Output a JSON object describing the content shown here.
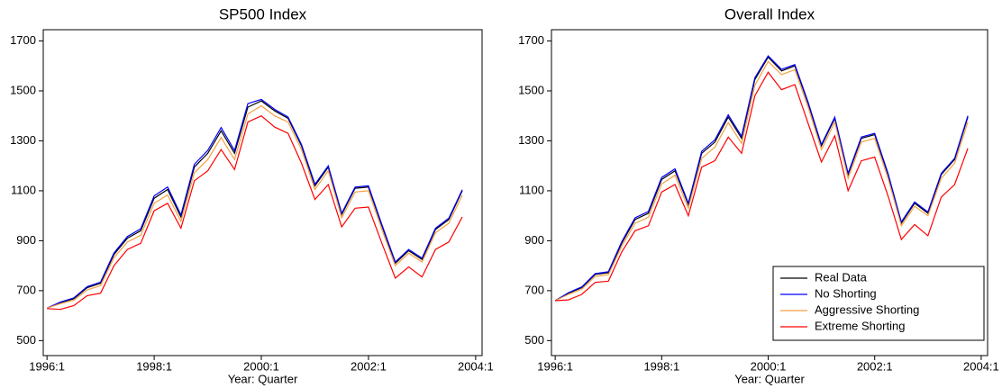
{
  "chart_data": [
    {
      "type": "line",
      "title": "SP500 Index",
      "x_label": "Year: Quarter",
      "x": [
        1996,
        1996.25,
        1996.5,
        1996.75,
        1997,
        1997.25,
        1997.5,
        1997.75,
        1998,
        1998.25,
        1998.5,
        1998.75,
        1999,
        1999.25,
        1999.5,
        1999.75,
        2000,
        2000.25,
        2000.5,
        2000.75,
        2001,
        2001.25,
        2001.5,
        2001.75,
        2002,
        2002.25,
        2002.5,
        2002.75,
        2003,
        2003.25,
        2003.5,
        2003.75
      ],
      "xlim": [
        1995.93,
        2004.12
      ],
      "xticks": [
        {
          "value": 1996,
          "label": "1996:1"
        },
        {
          "value": 1998,
          "label": "1998:1"
        },
        {
          "value": 2000,
          "label": "2000:1"
        },
        {
          "value": 2002,
          "label": "2002:1"
        },
        {
          "value": 2004,
          "label": "2004:1"
        }
      ],
      "ylim": [
        440,
        1745
      ],
      "yticks": [
        500,
        700,
        900,
        1100,
        1300,
        1500,
        1700
      ],
      "series": [
        {
          "color": "#000000",
          "values": [
            630,
            652,
            668,
            712,
            730,
            845,
            910,
            940,
            1070,
            1105,
            995,
            1195,
            1250,
            1340,
            1250,
            1435,
            1460,
            1420,
            1390,
            1280,
            1120,
            1195,
            1005,
            1110,
            1115,
            960,
            810,
            860,
            825,
            945,
            985,
            1100
          ]
        },
        {
          "color": "#0000ff",
          "values": [
            630,
            654,
            671,
            716,
            734,
            851,
            917,
            948,
            1080,
            1115,
            1003,
            1206,
            1262,
            1353,
            1261,
            1449,
            1466,
            1426,
            1395,
            1285,
            1126,
            1200,
            1010,
            1115,
            1120,
            965,
            815,
            865,
            830,
            950,
            990,
            1104
          ]
        },
        {
          "color": "#f5a040",
          "values": [
            630,
            648,
            662,
            703,
            720,
            832,
            895,
            922,
            1050,
            1083,
            978,
            1172,
            1225,
            1313,
            1225,
            1408,
            1440,
            1400,
            1375,
            1265,
            1105,
            1180,
            992,
            1095,
            1100,
            945,
            800,
            850,
            815,
            932,
            970,
            1082
          ]
        },
        {
          "color": "#ff0000",
          "values": [
            628,
            625,
            640,
            680,
            690,
            800,
            865,
            890,
            1020,
            1050,
            950,
            1140,
            1180,
            1265,
            1185,
            1375,
            1400,
            1355,
            1330,
            1210,
            1065,
            1125,
            955,
            1030,
            1035,
            890,
            750,
            795,
            755,
            865,
            895,
            995
          ]
        }
      ]
    },
    {
      "type": "line",
      "title": "Overall Index",
      "x_label": "Year: Quarter",
      "x": [
        1996,
        1996.25,
        1996.5,
        1996.75,
        1997,
        1997.25,
        1997.5,
        1997.75,
        1998,
        1998.25,
        1998.5,
        1998.75,
        1999,
        1999.25,
        1999.5,
        1999.75,
        2000,
        2000.25,
        2000.5,
        2000.75,
        2001,
        2001.25,
        2001.5,
        2001.75,
        2002,
        2002.25,
        2002.5,
        2002.75,
        2003,
        2003.25,
        2003.5,
        2003.75
      ],
      "xlim": [
        1995.93,
        2004.12
      ],
      "xticks": [
        {
          "value": 1996,
          "label": "1996:1"
        },
        {
          "value": 1998,
          "label": "1998:1"
        },
        {
          "value": 2000,
          "label": "2000:1"
        },
        {
          "value": 2002,
          "label": "2002:1"
        },
        {
          "value": 2004,
          "label": "2004:1"
        }
      ],
      "ylim": [
        440,
        1745
      ],
      "yticks": [
        500,
        700,
        900,
        1100,
        1300,
        1500,
        1700
      ],
      "legend": "lower right",
      "series": [
        {
          "name": "Real Data",
          "color": "#000000",
          "values": [
            660,
            690,
            712,
            765,
            772,
            890,
            985,
            1010,
            1145,
            1180,
            1045,
            1250,
            1295,
            1395,
            1310,
            1545,
            1635,
            1580,
            1600,
            1450,
            1280,
            1390,
            1165,
            1310,
            1325,
            1165,
            970,
            1050,
            1010,
            1165,
            1225,
            1395
          ]
        },
        {
          "name": "No Shorting",
          "color": "#0000ff",
          "values": [
            660,
            692,
            715,
            768,
            776,
            896,
            992,
            1017,
            1153,
            1188,
            1050,
            1258,
            1304,
            1404,
            1318,
            1552,
            1640,
            1586,
            1605,
            1455,
            1285,
            1395,
            1170,
            1315,
            1330,
            1170,
            975,
            1055,
            1015,
            1170,
            1230,
            1400
          ]
        },
        {
          "name": "Aggressive Shorting",
          "color": "#f5a040",
          "values": [
            660,
            685,
            706,
            757,
            764,
            878,
            970,
            994,
            1127,
            1162,
            1030,
            1230,
            1275,
            1373,
            1290,
            1522,
            1618,
            1565,
            1585,
            1435,
            1265,
            1375,
            1150,
            1295,
            1310,
            1150,
            960,
            1038,
            1000,
            1150,
            1210,
            1375
          ]
        },
        {
          "name": "Extreme Shorting",
          "color": "#ff0000",
          "values": [
            660,
            663,
            685,
            733,
            738,
            855,
            940,
            960,
            1095,
            1125,
            1000,
            1195,
            1220,
            1315,
            1250,
            1480,
            1575,
            1505,
            1525,
            1370,
            1215,
            1320,
            1100,
            1220,
            1235,
            1080,
            905,
            965,
            920,
            1075,
            1125,
            1270
          ]
        }
      ]
    }
  ]
}
